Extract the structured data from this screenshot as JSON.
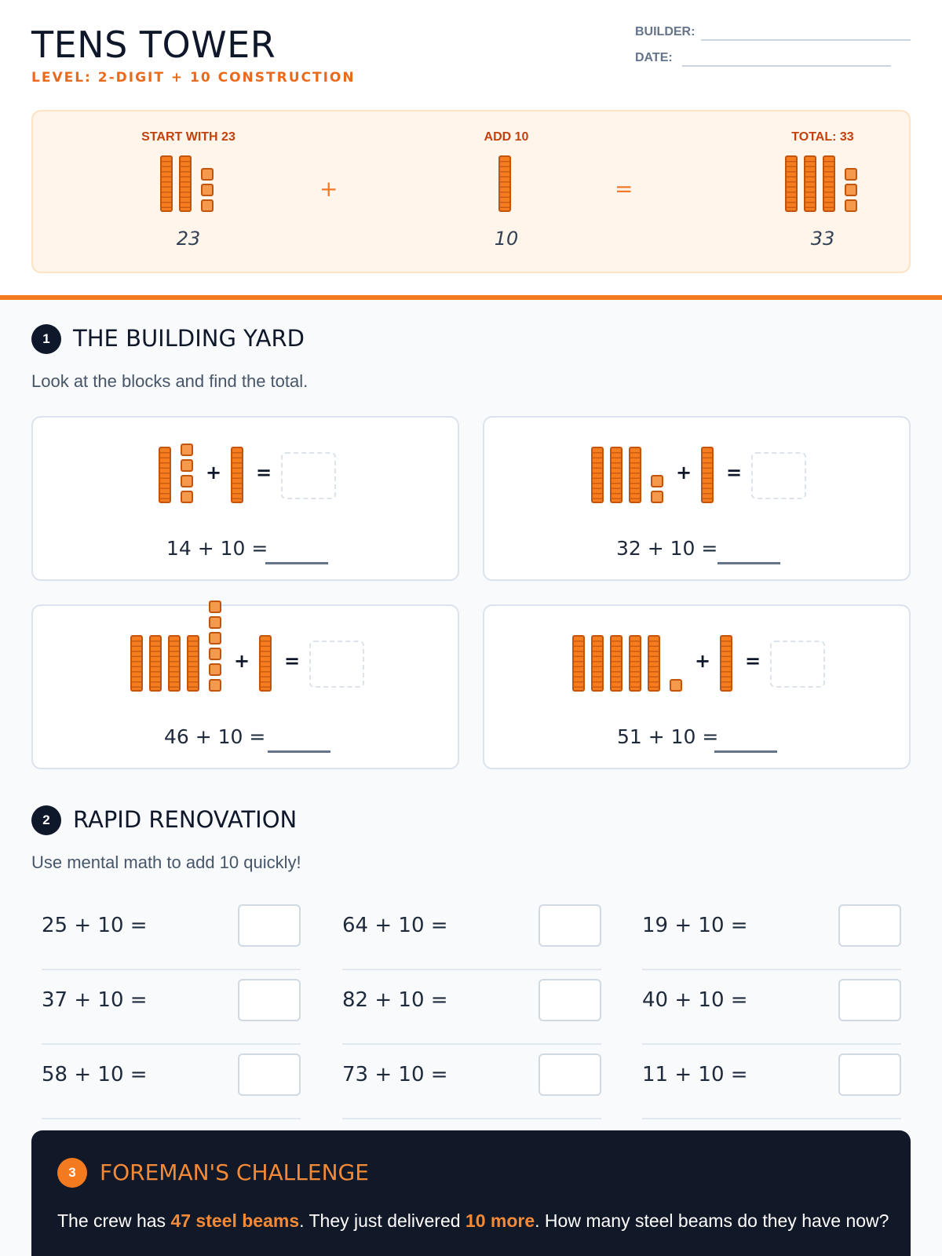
{
  "header": {
    "title": "TENS TOWER",
    "subtitle": "LEVEL: 2-DIGIT + 10 CONSTRUCTION",
    "builder_label": "BUILDER:",
    "date_label": "DATE:"
  },
  "example": {
    "start": {
      "label": "START WITH 23",
      "number": "23",
      "tens": 2,
      "ones": 3
    },
    "plus_symbol": "+",
    "add": {
      "label": "ADD 10",
      "number": "10",
      "tens": 1,
      "ones": 0
    },
    "equals_symbol": "=",
    "total": {
      "label": "TOTAL: 33",
      "number": "33",
      "tens": 3,
      "ones": 3
    }
  },
  "section1": {
    "number": "1",
    "title": "THE BUILDING YARD",
    "description": "Look at the blocks and find the total.",
    "plus": "+",
    "equals": "=",
    "problems": [
      {
        "equation": "14 + 10 =",
        "tens": 1,
        "ones": 4
      },
      {
        "equation": "32 + 10 =",
        "tens": 3,
        "ones": 2
      },
      {
        "equation": "46 + 10 =",
        "tens": 4,
        "ones": 6
      },
      {
        "equation": "51 + 10 =",
        "tens": 5,
        "ones": 1
      }
    ]
  },
  "section2": {
    "number": "2",
    "title": "RAPID RENOVATION",
    "description": "Use mental math to add 10 quickly!",
    "problems": [
      "25 + 10 =",
      "64 + 10 =",
      "19 + 10 =",
      "37 + 10 =",
      "82 + 10 =",
      "40 + 10 =",
      "58 + 10 =",
      "73 + 10 =",
      "11 + 10 ="
    ]
  },
  "section3": {
    "number": "3",
    "title": "FOREMAN'S CHALLENGE",
    "text_1": "The crew has ",
    "highlight_1": "47 steel beams",
    "text_2": ". They just delivered ",
    "highlight_2": "10 more",
    "text_3": ". How many steel beams do they have now?"
  },
  "colors": {
    "accent": "#f47a20",
    "dark": "#0f172a"
  }
}
